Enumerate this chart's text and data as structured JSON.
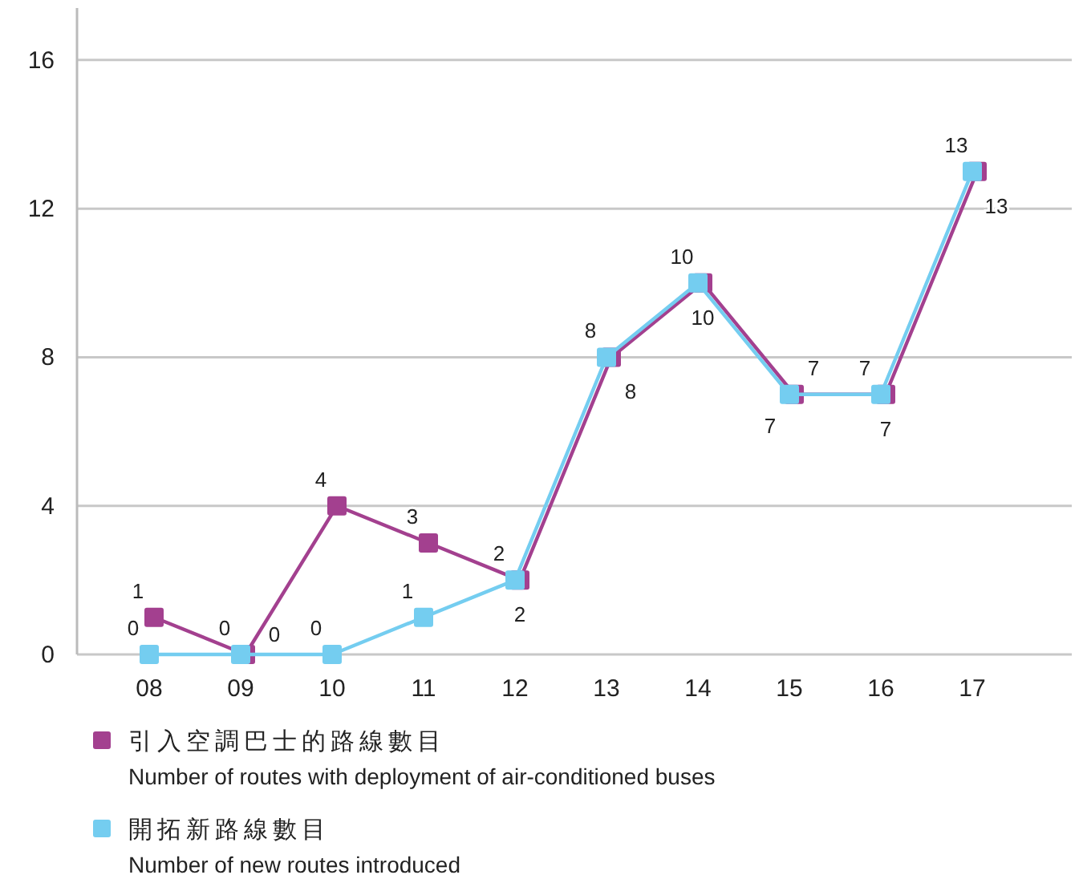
{
  "chart_data": {
    "type": "line",
    "categories": [
      "08",
      "09",
      "10",
      "11",
      "12",
      "13",
      "14",
      "15",
      "16",
      "17"
    ],
    "series": [
      {
        "name": "引入空調巴士的路線數目\nNumber of routes with deployment of air-conditioned buses",
        "color": "#a3408f",
        "values": [
          1,
          0,
          4,
          3,
          2,
          8,
          10,
          7,
          7,
          13
        ]
      },
      {
        "name": "開拓新路線數目\nNumber of new routes introduced",
        "color": "#74cdf0",
        "values": [
          0,
          0,
          0,
          1,
          2,
          8,
          10,
          7,
          7,
          13
        ]
      }
    ],
    "ylim": [
      0,
      17.4
    ],
    "yticks": [
      0,
      4,
      8,
      12,
      16
    ],
    "grid": "y",
    "legend": "bottom",
    "marker": "square",
    "data_labels": true
  }
}
